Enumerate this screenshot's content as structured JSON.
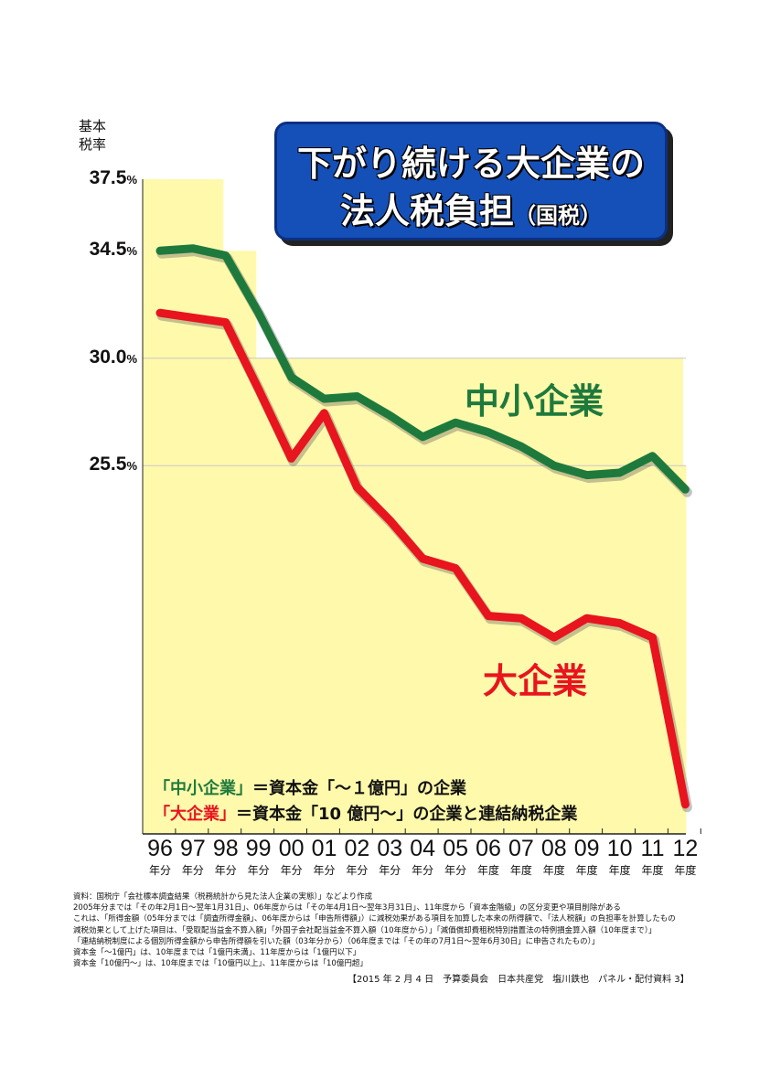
{
  "chart_data": {
    "type": "line",
    "title": "下がり続ける大企業の",
    "title_line2": "法人税負担",
    "title_sub": "（国税）",
    "ylabel": "基本\n税率",
    "y_ticks": [
      {
        "value": 37.5,
        "label": "37.5",
        "unit": "%"
      },
      {
        "value": 34.5,
        "label": "34.5",
        "unit": "%"
      },
      {
        "value": 30.0,
        "label": "30.0",
        "unit": "%"
      },
      {
        "value": 25.5,
        "label": "25.5",
        "unit": "%"
      }
    ],
    "categories": [
      "96",
      "97",
      "98",
      "99",
      "00",
      "01",
      "02",
      "03",
      "04",
      "05",
      "06",
      "07",
      "08",
      "09",
      "10",
      "11",
      "12"
    ],
    "x_suffixes": [
      "年分",
      "年分",
      "年分",
      "年分",
      "年分",
      "年分",
      "年分",
      "年分",
      "年分",
      "年分",
      "年度",
      "年度",
      "年度",
      "年度",
      "年度",
      "年度",
      "年度"
    ],
    "basic_rate": [
      37.5,
      37.5,
      34.5,
      30.0,
      30.0,
      30.0,
      30.0,
      30.0,
      30.0,
      30.0,
      30.0,
      30.0,
      30.0,
      30.0,
      30.0,
      30.0,
      25.5
    ],
    "series": [
      {
        "name": "中小企業",
        "color": "#1e7a3c",
        "values": [
          34.5,
          34.6,
          34.3,
          31.9,
          29.2,
          28.3,
          28.4,
          27.6,
          26.7,
          27.3,
          26.9,
          26.3,
          25.5,
          25.1,
          25.2,
          25.9,
          24.5
        ]
      },
      {
        "name": "大企業",
        "color": "#e8141e",
        "values": [
          31.9,
          31.7,
          31.5,
          28.7,
          25.8,
          27.7,
          24.6,
          23.2,
          21.6,
          21.2,
          19.2,
          19.1,
          18.3,
          19.1,
          18.9,
          18.3,
          11.3
        ]
      }
    ],
    "ylim": [
      7.0,
      39.0
    ]
  },
  "colors": {
    "step_fill": "#fff9ab",
    "sme": "#1e7a3c",
    "large": "#e8141e",
    "title_bg": "#1550b8"
  },
  "definitions": [
    {
      "term": "「中小企業」",
      "text": "＝資本金「～１億円」の企業",
      "color": "#1e7a3c"
    },
    {
      "term": "「大企業」",
      "text": "＝資本金「10 億円～」の企業と連結納税企業",
      "color": "#e8141e"
    }
  ],
  "notes": [
    "資料：国税庁「会社標本調査結果（税務統計から見た法人企業の実態）」などより作成",
    "2005年分までは「その年2月1日～翌年1月31日」、06年度からは「その年4月1日～翌年3月31日」、11年度から「資本金階級」の区分変更や項目削除がある",
    "これは、「所得金額（05年分までは「調査所得金額」、06年度からは「申告所得額」）に減税効果がある項目を加算した本来の所得額で、「法人税額」の負担率を計算したもの",
    "減税効果として上げた項目は、「受取配当益金不算入額」「外国子会社配当益金不算入額（10年度から）」「減価償却費租税特別措置法の特例損金算入額（10年度まで）」",
    "「連結納税制度による個別所得金額から申告所得額を引いた額（03年分から）（06年度までは「その年の7月1日～翌年6月30日」に申告されたもの）」",
    "資本金「～1億円」は、10年度までは「1億円未満」、11年度からは「1億円以下」",
    "資本金「10億円～」は、10年度までは「10億円以上」、11年度からは「10億円超」"
  ],
  "footer": "【2015 年 2 月 4 日　予算委員会　日本共産党　塩川鉄也　パネル・配付資料 3】"
}
